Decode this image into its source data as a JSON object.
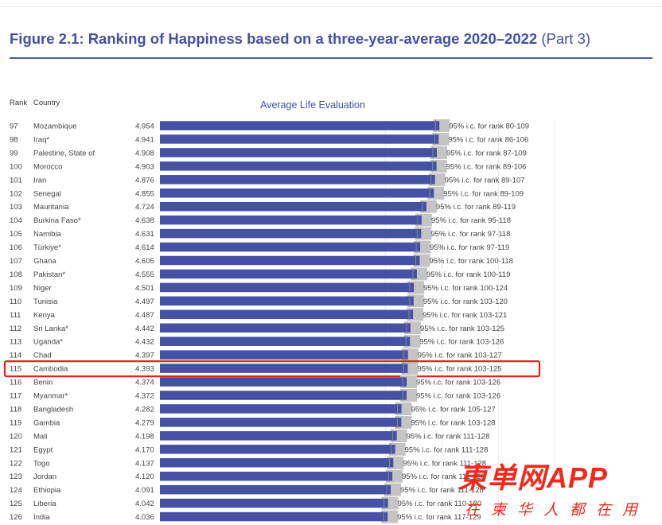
{
  "figure": {
    "title": "Figure 2.1: Ranking of Happiness based on a three-year-average 2020–2022",
    "part": "(Part 3)"
  },
  "headers": {
    "rank": "Rank",
    "country": "Country"
  },
  "colors": {
    "bar": "#4451a5",
    "ci": "#c4c4c4",
    "highlight": "#e3231f",
    "title": "#4350a5"
  },
  "highlighted_country": "Cambodia",
  "chart_data": {
    "type": "bar",
    "orientation": "horizontal",
    "title": "Average Life Evaluation",
    "xlim": [
      0,
      7.8
    ],
    "grid": true,
    "rows": [
      {
        "rank": "97",
        "country": "Mozambique",
        "score": "4.954",
        "value": 4.954,
        "ci": "95% i.c. for rank 80-109"
      },
      {
        "rank": "98",
        "country": "Iraq*",
        "score": "4.941",
        "value": 4.941,
        "ci": "95% i.c. for rank 86-106"
      },
      {
        "rank": "99",
        "country": "Palestine, State of",
        "score": "4.908",
        "value": 4.908,
        "ci": "95% i.c. for rank 87-109"
      },
      {
        "rank": "100",
        "country": "Morocco",
        "score": "4.903",
        "value": 4.903,
        "ci": "95% i.c. for rank 89-106"
      },
      {
        "rank": "101",
        "country": "Iran",
        "score": "4.876",
        "value": 4.876,
        "ci": "95% i.c. for rank 89-107"
      },
      {
        "rank": "102",
        "country": "Senegal",
        "score": "4.855",
        "value": 4.855,
        "ci": "95% i.c. for rank 89-109"
      },
      {
        "rank": "103",
        "country": "Mauritania",
        "score": "4.724",
        "value": 4.724,
        "ci": "95% i.c. for rank 89-119"
      },
      {
        "rank": "104",
        "country": "Burkina Faso*",
        "score": "4.638",
        "value": 4.638,
        "ci": "95% i.c. for rank 95-118"
      },
      {
        "rank": "105",
        "country": "Namibia",
        "score": "4.631",
        "value": 4.631,
        "ci": "95% i.c. for rank 97-118"
      },
      {
        "rank": "106",
        "country": "Türkiye*",
        "score": "4.614",
        "value": 4.614,
        "ci": "95% i.c. for rank 97-119"
      },
      {
        "rank": "107",
        "country": "Ghana",
        "score": "4.605",
        "value": 4.605,
        "ci": "95% i.c. for rank 100-118"
      },
      {
        "rank": "108",
        "country": "Pakistan*",
        "score": "4.555",
        "value": 4.555,
        "ci": "95% i.c. for rank 100-119"
      },
      {
        "rank": "109",
        "country": "Niger",
        "score": "4.501",
        "value": 4.501,
        "ci": "95% i.c. for rank 100-124"
      },
      {
        "rank": "110",
        "country": "Tunisia",
        "score": "4.497",
        "value": 4.497,
        "ci": "95% i.c. for rank 103-120"
      },
      {
        "rank": "111",
        "country": "Kenya",
        "score": "4.487",
        "value": 4.487,
        "ci": "95% i.c. for rank 103-121"
      },
      {
        "rank": "112",
        "country": "Sri Lanka*",
        "score": "4.442",
        "value": 4.442,
        "ci": "95% i.c. for rank 103-125"
      },
      {
        "rank": "113",
        "country": "Uganda*",
        "score": "4.432",
        "value": 4.432,
        "ci": "95% i.c. for rank 103-126"
      },
      {
        "rank": "114",
        "country": "Chad",
        "score": "4.397",
        "value": 4.397,
        "ci": "95% i.c. for rank 103-127"
      },
      {
        "rank": "115",
        "country": "Cambodia",
        "score": "4.393",
        "value": 4.393,
        "ci": "95% i.c. for rank 103-125"
      },
      {
        "rank": "116",
        "country": "Benin",
        "score": "4.374",
        "value": 4.374,
        "ci": "95% i.c. for rank 103-126"
      },
      {
        "rank": "117",
        "country": "Myanmar*",
        "score": "4.372",
        "value": 4.372,
        "ci": "95% i.c. for rank 103-126"
      },
      {
        "rank": "118",
        "country": "Bangladesh",
        "score": "4.282",
        "value": 4.282,
        "ci": "95% i.c. for rank 105-127"
      },
      {
        "rank": "119",
        "country": "Gambia",
        "score": "4.279",
        "value": 4.279,
        "ci": "95% i.c. for rank 103-128"
      },
      {
        "rank": "120",
        "country": "Mali",
        "score": "4.198",
        "value": 4.198,
        "ci": "95% i.c. for rank 111-128"
      },
      {
        "rank": "121",
        "country": "Egypt",
        "score": "4.170",
        "value": 4.17,
        "ci": "95% i.c. for rank 111-128"
      },
      {
        "rank": "122",
        "country": "Togo",
        "score": "4.137",
        "value": 4.137,
        "ci": "95% i.c. for rank 111-128"
      },
      {
        "rank": "123",
        "country": "Jordan",
        "score": "4.120",
        "value": 4.12,
        "ci": "95% i.c. for rank 111-128"
      },
      {
        "rank": "124",
        "country": "Ethiopia",
        "score": "4.091",
        "value": 4.091,
        "ci": "95% i.c. for rank 111-128"
      },
      {
        "rank": "125",
        "country": "Liberia",
        "score": "4.042",
        "value": 4.042,
        "ci": "95% i.c. for rank 110-130"
      },
      {
        "rank": "126",
        "country": "India",
        "score": "4.036",
        "value": 4.036,
        "ci": "95% i.c. for rank 117-129"
      }
    ]
  },
  "watermark": {
    "brand": "東单网APP",
    "slogan": "在柬华人都在用"
  }
}
